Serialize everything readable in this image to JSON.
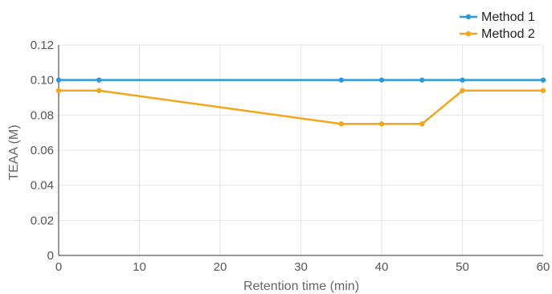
{
  "chart_data": {
    "type": "line",
    "title": "",
    "xlabel": "Retention time (min)",
    "ylabel": "TEAA (M)",
    "xlim": [
      0,
      60
    ],
    "ylim": [
      0,
      0.12
    ],
    "xticks": [
      0,
      10,
      20,
      30,
      40,
      50,
      60
    ],
    "xtick_labels": [
      "0",
      "10",
      "20",
      "30",
      "40",
      "50",
      "60"
    ],
    "yticks": [
      0,
      0.02,
      0.04,
      0.06,
      0.08,
      0.1,
      0.12
    ],
    "ytick_labels": [
      "0",
      "0.02",
      "0.04",
      "0.06",
      "0.08",
      "0.10",
      "0.12"
    ],
    "grid": true,
    "legend_position": "top-right",
    "series": [
      {
        "name": "Method 1",
        "color": "#2b9bd8",
        "x": [
          0,
          5,
          35,
          40,
          45,
          50,
          60
        ],
        "y": [
          0.1,
          0.1,
          0.1,
          0.1,
          0.1,
          0.1,
          0.1
        ]
      },
      {
        "name": "Method 2",
        "color": "#f2a71b",
        "x": [
          0,
          5,
          35,
          40,
          45,
          50,
          60
        ],
        "y": [
          0.094,
          0.094,
          0.075,
          0.075,
          0.075,
          0.094,
          0.094
        ]
      }
    ]
  }
}
